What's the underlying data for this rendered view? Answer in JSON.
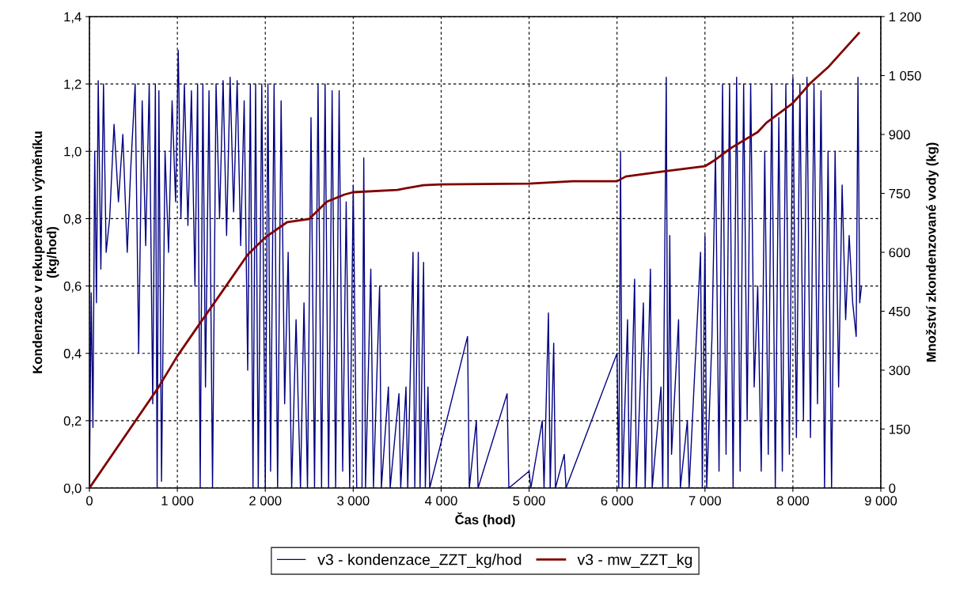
{
  "chart_data": {
    "type": "line",
    "xlabel": "Čas (hod)",
    "ylabel": "Kondenzace v rekuperačním výměníku\n(kg/hod)",
    "y2label": "Množství zkondenzované vody (kg)",
    "xlim": [
      0,
      9000
    ],
    "xticks": [
      0,
      {
        "value": 1000,
        "label": "1 000"
      },
      {
        "value": 2000,
        "label": "2 000"
      },
      {
        "value": 3000,
        "label": "3 000"
      },
      {
        "value": 4000,
        "label": "4 000"
      },
      {
        "value": 5000,
        "label": "5 000"
      },
      {
        "value": 6000,
        "label": "6 000"
      },
      {
        "value": 7000,
        "label": "7 000"
      },
      {
        "value": 8000,
        "label": "8 000"
      },
      {
        "value": 9000,
        "label": "9 000"
      }
    ],
    "ylim": [
      0,
      1.4
    ],
    "yticks": [
      {
        "value": 0,
        "label": "0,0"
      },
      {
        "value": 0.2,
        "label": "0,2"
      },
      {
        "value": 0.4,
        "label": "0,4"
      },
      {
        "value": 0.6,
        "label": "0,6"
      },
      {
        "value": 0.8,
        "label": "0,8"
      },
      {
        "value": 1.0,
        "label": "1,0"
      },
      {
        "value": 1.2,
        "label": "1,2"
      },
      {
        "value": 1.4,
        "label": "1,4"
      }
    ],
    "y2lim": [
      0,
      1200
    ],
    "y2ticks": [
      0,
      150,
      300,
      450,
      600,
      750,
      900,
      {
        "value": 1050,
        "label": "1 050"
      },
      {
        "value": 1200,
        "label": "1 200"
      }
    ],
    "grid": true,
    "legend": "bottom",
    "marker": "none",
    "line_style": "solid",
    "series": [
      {
        "name": "v3 - kondenzace_ZZT_kg/hod",
        "color": "#000080",
        "x": [
          0,
          20,
          40,
          60,
          80,
          100,
          130,
          160,
          190,
          230,
          280,
          330,
          380,
          430,
          470,
          520,
          560,
          600,
          640,
          680,
          720,
          750,
          770,
          790,
          820,
          860,
          900,
          940,
          980,
          1010,
          1040,
          1080,
          1120,
          1160,
          1200,
          1230,
          1260,
          1290,
          1320,
          1360,
          1400,
          1440,
          1480,
          1520,
          1560,
          1600,
          1640,
          1680,
          1720,
          1760,
          1800,
          1830,
          1860,
          1890,
          1920,
          1960,
          2000,
          2030,
          2060,
          2100,
          2140,
          2180,
          2220,
          2260,
          2300,
          2350,
          2400,
          2440,
          2480,
          2520,
          2560,
          2600,
          2640,
          2680,
          2720,
          2760,
          2800,
          2840,
          2880,
          2920,
          2960,
          3000,
          3040,
          3100,
          3120,
          3140,
          3200,
          3230,
          3300,
          3320,
          3400,
          3420,
          3520,
          3540,
          3600,
          3620,
          3680,
          3700,
          3740,
          3760,
          3800,
          3820,
          3850,
          3870,
          4300,
          4320,
          4400,
          4420,
          4750,
          4770,
          5000,
          5020,
          5150,
          5170,
          5220,
          5240,
          5280,
          5300,
          5400,
          5420,
          6000,
          6020,
          6040,
          6060,
          6120,
          6140,
          6200,
          6220,
          6300,
          6320,
          6380,
          6400,
          6500,
          6520,
          6560,
          6580,
          6600,
          6620,
          6700,
          6720,
          6800,
          6820,
          6950,
          6970,
          7000,
          7020,
          7080,
          7120,
          7160,
          7200,
          7240,
          7280,
          7320,
          7360,
          7400,
          7440,
          7480,
          7520,
          7560,
          7600,
          7640,
          7680,
          7720,
          7760,
          7800,
          7840,
          7880,
          7920,
          7960,
          8000,
          8040,
          8080,
          8120,
          8160,
          8200,
          8240,
          8280,
          8320,
          8360,
          8400,
          8440,
          8480,
          8520,
          8560,
          8600,
          8640,
          8680,
          8720,
          8740,
          8760,
          8780
        ],
        "values": [
          0,
          0.58,
          0.18,
          1.0,
          0.55,
          1.21,
          0.65,
          1.2,
          0.7,
          0.8,
          1.08,
          0.85,
          1.05,
          0.7,
          0.95,
          1.2,
          0.4,
          1.15,
          0.72,
          1.2,
          0.25,
          1.2,
          0.0,
          1.18,
          0.02,
          1.0,
          0.7,
          1.15,
          0.85,
          1.3,
          0.8,
          1.2,
          0.78,
          1.18,
          0.6,
          1.2,
          0.0,
          1.2,
          0.3,
          1.18,
          0.0,
          1.2,
          0.8,
          1.21,
          0.75,
          1.22,
          0.82,
          1.21,
          0.72,
          1.15,
          0.35,
          1.2,
          0.0,
          1.2,
          0.0,
          1.2,
          0.0,
          1.2,
          0.05,
          1.2,
          0.0,
          1.15,
          0.25,
          0.7,
          0.0,
          0.5,
          0.0,
          0.55,
          0.0,
          1.1,
          0.0,
          1.2,
          0.0,
          1.2,
          0.0,
          1.18,
          0.0,
          1.18,
          0.05,
          0.85,
          0.0,
          0.9,
          0.0,
          0.0,
          0.98,
          0.0,
          0.65,
          0.0,
          0.6,
          0.0,
          0.3,
          0.0,
          0.28,
          0.0,
          0.3,
          0.0,
          0.7,
          0.0,
          0.7,
          0.0,
          0.67,
          0.0,
          0.3,
          0.0,
          0.45,
          0.0,
          0.2,
          0.0,
          0.28,
          0.0,
          0.05,
          0.0,
          0.2,
          0.0,
          0.52,
          0.0,
          0.43,
          0.0,
          0.1,
          0.0,
          0.4,
          0.0,
          1.0,
          0.0,
          0.5,
          0.0,
          0.62,
          0.0,
          0.55,
          0.0,
          0.65,
          0.0,
          0.3,
          0.0,
          1.22,
          0.0,
          0.75,
          0.1,
          0.5,
          0.0,
          0.2,
          0.0,
          0.7,
          0.0,
          0.75,
          0.0,
          0.45,
          1.0,
          0.05,
          1.2,
          0.1,
          1.2,
          0.0,
          1.22,
          0.05,
          1.2,
          0.2,
          1.2,
          0.3,
          0.6,
          0.05,
          1.0,
          0.1,
          1.2,
          0.0,
          1.1,
          0.05,
          1.2,
          0.1,
          1.22,
          0.15,
          1.2,
          0.2,
          1.22,
          0.15,
          1.2,
          0.25,
          1.18,
          0.0,
          1.0,
          0.0,
          1.0,
          0.3,
          0.9,
          0.5,
          0.75,
          0.55,
          0.45,
          1.22,
          0.55,
          0.6
        ]
      },
      {
        "name": "v3 - mw_ZZT_kg",
        "color": "#800000",
        "axis": "y2",
        "x": [
          0,
          784,
          1000,
          1250,
          1500,
          1800,
          2000,
          2250,
          2500,
          2700,
          2900,
          3000,
          3500,
          3800,
          4000,
          5000,
          5500,
          6000,
          6100,
          6500,
          7000,
          7100,
          7300,
          7600,
          7700,
          8000,
          8200,
          8400,
          8750
        ],
        "values": [
          0,
          256,
          336,
          417,
          497,
          594,
          638,
          677,
          685,
          729,
          747,
          753,
          759,
          771,
          773,
          775,
          781,
          781,
          793,
          805,
          819,
          833,
          866,
          906,
          930,
          980,
          1031,
          1071,
          1158
        ]
      }
    ]
  }
}
